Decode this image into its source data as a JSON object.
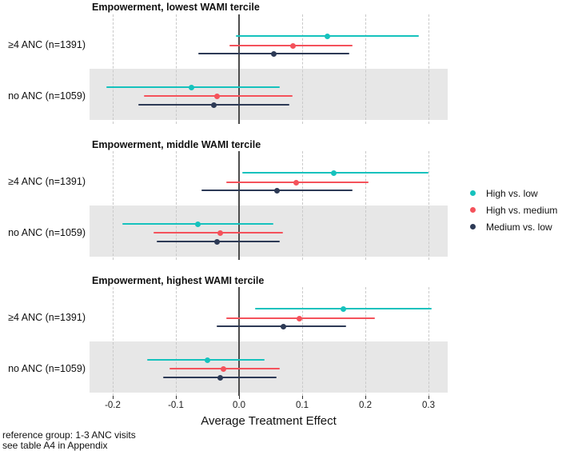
{
  "colors": {
    "high_vs_low": "#16c2bd",
    "high_vs_medium": "#f4525b",
    "medium_vs_low": "#2d3a56",
    "shaded_band": "#e7e7e7",
    "gridline": "#c9c9c9",
    "zero_line": "#4d4d4d"
  },
  "legend": {
    "items": [
      {
        "label": "High vs. low",
        "color": "#16c2bd"
      },
      {
        "label": "High vs. medium",
        "color": "#f4525b"
      },
      {
        "label": "Medium vs. low",
        "color": "#2d3a56"
      }
    ]
  },
  "x_axis": {
    "label": "Average Treatment Effect",
    "ticks": [
      -0.2,
      -0.1,
      0.0,
      0.1,
      0.2,
      0.3
    ],
    "tick_labels": [
      "-0.2",
      "-0.1",
      "0.0",
      "0.1",
      "0.2",
      "0.3"
    ]
  },
  "footnotes": [
    "reference group: 1-3 ANC visits",
    "see table A4 in Appendix"
  ],
  "chart_data": {
    "type": "scatter",
    "subtype": "forest-plot-dot-with-ci",
    "x_range": [
      -0.2367,
      0.3304
    ],
    "grid": "dashed-vertical-at-ticks, solid-reference-line-at-0",
    "legend_position": "right",
    "series_names": [
      "High vs. low",
      "High vs. medium",
      "Medium vs. low"
    ],
    "panels": [
      {
        "title": "Empowerment, lowest WAMI tercile",
        "groups": [
          {
            "label": "≥4 ANC (n=1391)",
            "shaded": false,
            "estimates": [
              {
                "series": "High vs. low",
                "est": 0.14,
                "lo": -0.005,
                "hi": 0.285
              },
              {
                "series": "High vs. medium",
                "est": 0.085,
                "lo": -0.015,
                "hi": 0.18
              },
              {
                "series": "Medium vs. low",
                "est": 0.055,
                "lo": -0.065,
                "hi": 0.175
              }
            ]
          },
          {
            "label": "no ANC (n=1059)",
            "shaded": true,
            "estimates": [
              {
                "series": "High vs. low",
                "est": -0.075,
                "lo": -0.21,
                "hi": 0.065
              },
              {
                "series": "High vs. medium",
                "est": -0.035,
                "lo": -0.15,
                "hi": 0.085
              },
              {
                "series": "Medium vs. low",
                "est": -0.04,
                "lo": -0.16,
                "hi": 0.08
              }
            ]
          }
        ]
      },
      {
        "title": "Empowerment, middle WAMI tercile",
        "groups": [
          {
            "label": "≥4 ANC (n=1391)",
            "shaded": false,
            "estimates": [
              {
                "series": "High vs. low",
                "est": 0.15,
                "lo": 0.005,
                "hi": 0.3
              },
              {
                "series": "High vs. medium",
                "est": 0.09,
                "lo": -0.02,
                "hi": 0.205
              },
              {
                "series": "Medium vs. low",
                "est": 0.06,
                "lo": -0.06,
                "hi": 0.18
              }
            ]
          },
          {
            "label": "no ANC (n=1059)",
            "shaded": true,
            "estimates": [
              {
                "series": "High vs. low",
                "est": -0.065,
                "lo": -0.185,
                "hi": 0.055
              },
              {
                "series": "High vs. medium",
                "est": -0.03,
                "lo": -0.135,
                "hi": 0.07
              },
              {
                "series": "Medium vs. low",
                "est": -0.035,
                "lo": -0.13,
                "hi": 0.065
              }
            ]
          }
        ]
      },
      {
        "title": "Empowerment, highest WAMI tercile",
        "groups": [
          {
            "label": "≥4 ANC (n=1391)",
            "shaded": false,
            "estimates": [
              {
                "series": "High vs. low",
                "est": 0.165,
                "lo": 0.025,
                "hi": 0.305
              },
              {
                "series": "High vs. medium",
                "est": 0.095,
                "lo": -0.02,
                "hi": 0.215
              },
              {
                "series": "Medium vs. low",
                "est": 0.07,
                "lo": -0.035,
                "hi": 0.17
              }
            ]
          },
          {
            "label": "no ANC (n=1059)",
            "shaded": true,
            "estimates": [
              {
                "series": "High vs. low",
                "est": -0.05,
                "lo": -0.145,
                "hi": 0.04
              },
              {
                "series": "High vs. medium",
                "est": -0.025,
                "lo": -0.11,
                "hi": 0.065
              },
              {
                "series": "Medium vs. low",
                "est": -0.03,
                "lo": -0.12,
                "hi": 0.06
              }
            ]
          }
        ]
      }
    ]
  }
}
